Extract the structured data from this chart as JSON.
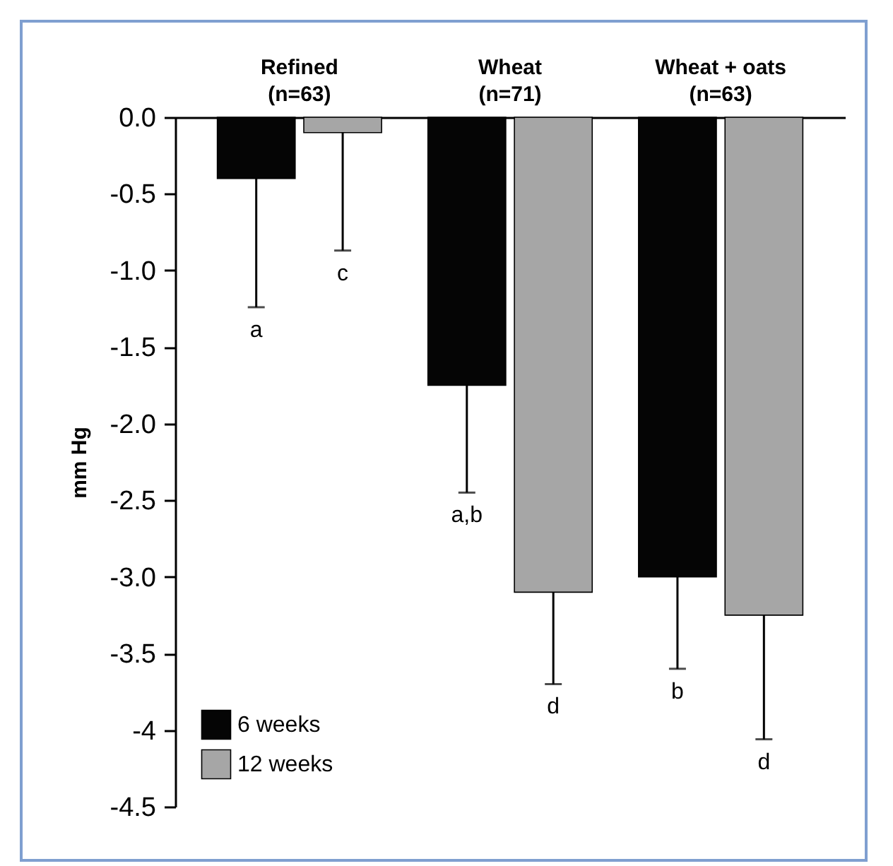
{
  "chart_data": {
    "type": "bar",
    "ylabel": "mm Hg",
    "categories": [
      "Refined\n(n=63)",
      "Wheat\n(n=71)",
      "Wheat + oats\n(n=63)"
    ],
    "series": [
      {
        "name": "6 weeks",
        "color": "#050505",
        "values": [
          -0.4,
          -1.75,
          -3.0
        ],
        "errors": [
          [
            -1.24,
            -0.4
          ],
          [
            -2.45,
            -1.75
          ],
          [
            -3.6,
            -3.0
          ]
        ]
      },
      {
        "name": "12 weeks",
        "color": "#a6a6a6",
        "values": [
          -0.1,
          -3.1,
          -3.25
        ],
        "errors": [
          [
            -0.87,
            -0.1
          ],
          [
            -3.7,
            -3.1
          ],
          [
            -4.06,
            -3.25
          ]
        ]
      }
    ],
    "ylim": [
      -4.5,
      0
    ],
    "yticks": [
      {
        "value": 0,
        "label": "0.0"
      },
      {
        "value": -0.5,
        "label": "-0.5"
      },
      {
        "value": -1,
        "label": "-1.0"
      },
      {
        "value": -1.5,
        "label": "-1.5"
      },
      {
        "value": -2,
        "label": "-2.0"
      },
      {
        "value": -2.5,
        "label": "-2.5"
      },
      {
        "value": -3,
        "label": "-3.0"
      },
      {
        "value": -3.5,
        "label": "-3.5"
      },
      {
        "value": -4,
        "label": "-4"
      },
      {
        "value": -4.5,
        "label": "-4.5"
      }
    ],
    "annotations": [
      "a",
      "c",
      "a,b",
      "d",
      "b",
      "d"
    ],
    "grid": false,
    "legend": "bottom left"
  }
}
